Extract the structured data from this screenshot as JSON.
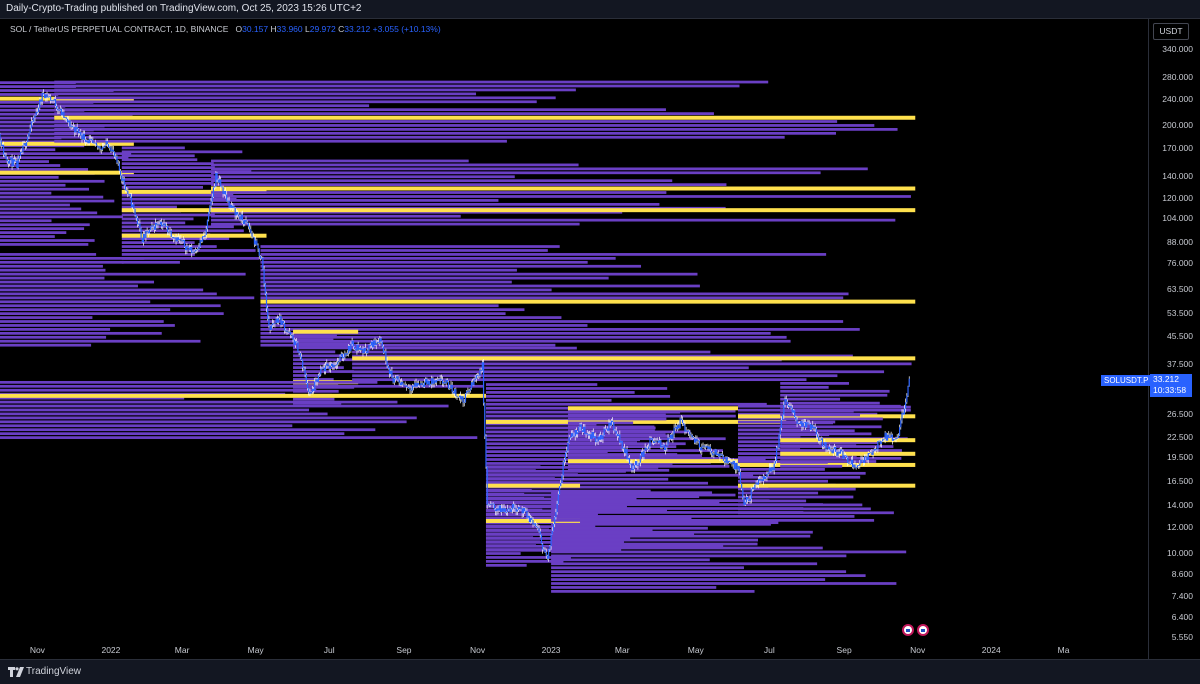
{
  "header": {
    "published": "Daily-Crypto-Trading published on TradingView.com, Oct 25, 2023 15:26 UTC+2"
  },
  "legend": {
    "symbol": "SOL / TetherUS PERPETUAL CONTRACT, 1D, BINANCE",
    "o_label": "O",
    "o": "30.157",
    "h_label": "H",
    "h": "33.960",
    "l_label": "L",
    "l": "29.972",
    "c_label": "C",
    "c": "33.212",
    "change": "+3.055 (+10.13%)"
  },
  "currency_button": "USDT",
  "last_price": {
    "symbol": "SOLUSDT.P",
    "price": "33.212",
    "countdown": "10:33:58"
  },
  "footer": {
    "brand": "TradingView"
  },
  "colors": {
    "profile": "#6a3fc4",
    "poc": "#ffe14d",
    "candle": "#2962ff",
    "wick": "#ffffff",
    "badge": "#2962ff"
  },
  "chart_data": {
    "type": "candlestick-volume-profile",
    "title": "",
    "y_scale": "log",
    "ylim": [
      5.55,
      380
    ],
    "x_range": [
      "2021-10-01",
      "2024-05-10"
    ],
    "price_ticks": [
      "340.000",
      "280.000",
      "240.000",
      "200.000",
      "170.000",
      "140.000",
      "120.000",
      "104.000",
      "88.000",
      "76.000",
      "63.500",
      "53.500",
      "45.500",
      "37.500",
      "26.500",
      "22.500",
      "19.500",
      "16.500",
      "14.000",
      "12.000",
      "10.000",
      "8.600",
      "7.400",
      "6.400",
      "5.550"
    ],
    "time_ticks": [
      {
        "label": "Nov",
        "date": "2021-11-01"
      },
      {
        "label": "2022",
        "date": "2022-01-01"
      },
      {
        "label": "Mar",
        "date": "2022-03-01"
      },
      {
        "label": "May",
        "date": "2022-05-01"
      },
      {
        "label": "Jul",
        "date": "2022-07-01"
      },
      {
        "label": "Sep",
        "date": "2022-09-01"
      },
      {
        "label": "Nov",
        "date": "2022-11-01"
      },
      {
        "label": "2023",
        "date": "2023-01-01"
      },
      {
        "label": "Mar",
        "date": "2023-03-01"
      },
      {
        "label": "May",
        "date": "2023-05-01"
      },
      {
        "label": "Jul",
        "date": "2023-07-01"
      },
      {
        "label": "Sep",
        "date": "2023-09-01"
      },
      {
        "label": "Nov",
        "date": "2023-11-01"
      },
      {
        "label": "2024",
        "date": "2024-01-01"
      },
      {
        "label": "Ma",
        "date": "2024-03-01"
      }
    ],
    "price_path": [
      [
        "2021-09-28",
        200
      ],
      [
        "2021-10-05",
        160
      ],
      [
        "2021-10-15",
        150
      ],
      [
        "2021-10-25",
        190
      ],
      [
        "2021-11-06",
        250
      ],
      [
        "2021-11-15",
        235
      ],
      [
        "2021-11-25",
        205
      ],
      [
        "2021-12-05",
        190
      ],
      [
        "2021-12-20",
        170
      ],
      [
        "2021-12-31",
        175
      ],
      [
        "2022-01-08",
        145
      ],
      [
        "2022-01-20",
        110
      ],
      [
        "2022-01-27",
        90
      ],
      [
        "2022-02-10",
        102
      ],
      [
        "2022-02-25",
        90
      ],
      [
        "2022-03-10",
        82
      ],
      [
        "2022-03-20",
        92
      ],
      [
        "2022-03-29",
        140
      ],
      [
        "2022-04-10",
        113
      ],
      [
        "2022-04-25",
        98
      ],
      [
        "2022-05-06",
        78
      ],
      [
        "2022-05-12",
        48
      ],
      [
        "2022-05-20",
        52
      ],
      [
        "2022-06-05",
        42
      ],
      [
        "2022-06-15",
        30
      ],
      [
        "2022-06-25",
        36
      ],
      [
        "2022-07-08",
        38
      ],
      [
        "2022-07-20",
        43
      ],
      [
        "2022-07-30",
        41
      ],
      [
        "2022-08-12",
        45
      ],
      [
        "2022-08-22",
        34
      ],
      [
        "2022-09-05",
        32
      ],
      [
        "2022-09-20",
        33
      ],
      [
        "2022-10-05",
        33
      ],
      [
        "2022-10-20",
        29
      ],
      [
        "2022-11-05",
        37
      ],
      [
        "2022-11-09",
        14
      ],
      [
        "2022-11-20",
        13.5
      ],
      [
        "2022-12-05",
        13.8
      ],
      [
        "2022-12-20",
        12
      ],
      [
        "2022-12-29",
        9.5
      ],
      [
        "2023-01-08",
        16
      ],
      [
        "2023-01-15",
        22
      ],
      [
        "2023-01-25",
        24
      ],
      [
        "2023-02-10",
        22
      ],
      [
        "2023-02-20",
        25
      ],
      [
        "2023-03-10",
        18
      ],
      [
        "2023-03-25",
        22
      ],
      [
        "2023-04-05",
        21
      ],
      [
        "2023-04-18",
        25
      ],
      [
        "2023-05-05",
        21
      ],
      [
        "2023-05-20",
        20
      ],
      [
        "2023-06-05",
        18
      ],
      [
        "2023-06-10",
        14
      ],
      [
        "2023-06-20",
        16
      ],
      [
        "2023-07-05",
        18.5
      ],
      [
        "2023-07-14",
        29
      ],
      [
        "2023-07-25",
        25
      ],
      [
        "2023-08-05",
        24
      ],
      [
        "2023-08-17",
        21
      ],
      [
        "2023-08-30",
        20
      ],
      [
        "2023-09-10",
        18.5
      ],
      [
        "2023-09-20",
        19.5
      ],
      [
        "2023-10-05",
        22.5
      ],
      [
        "2023-10-15",
        22
      ],
      [
        "2023-10-20",
        27
      ],
      [
        "2023-10-25",
        33.2
      ]
    ],
    "volume_profiles": [
      {
        "start": "2021-09-28",
        "end": "2022-01-20",
        "low": 85,
        "high": 265,
        "poc": [
          240,
          175,
          143
        ]
      },
      {
        "start": "2022-01-10",
        "end": "2022-05-10",
        "low": 75,
        "high": 170,
        "poc": [
          125,
          110,
          92
        ]
      },
      {
        "start": "2021-11-15",
        "end": "2023-10-30",
        "low": 175,
        "high": 265,
        "poc": [
          210
        ]
      },
      {
        "start": "2022-03-25",
        "end": "2023-10-30",
        "low": 98,
        "high": 155,
        "poc": [
          128,
          110
        ]
      },
      {
        "start": "2022-05-05",
        "end": "2023-10-30",
        "low": 42,
        "high": 85,
        "poc": [
          58
        ]
      },
      {
        "start": "2021-09-28",
        "end": "2022-05-10",
        "low": 42,
        "high": 80,
        "poc": []
      },
      {
        "start": "2022-06-01",
        "end": "2022-07-25",
        "low": 28,
        "high": 45,
        "poc": [
          47,
          33
        ]
      },
      {
        "start": "2022-07-20",
        "end": "2023-10-30",
        "low": 33,
        "high": 42,
        "poc": [
          39
        ]
      },
      {
        "start": "2021-09-28",
        "end": "2022-11-08",
        "low": 22,
        "high": 33,
        "poc": [
          30
        ]
      },
      {
        "start": "2022-11-08",
        "end": "2023-07-15",
        "low": 10,
        "high": 32,
        "poc": [
          25
        ]
      },
      {
        "start": "2022-11-08",
        "end": "2023-01-25",
        "low": 9,
        "high": 18,
        "poc": [
          16,
          12.5
        ]
      },
      {
        "start": "2023-01-01",
        "end": "2023-10-30",
        "low": 7.5,
        "high": 15,
        "poc": []
      },
      {
        "start": "2023-01-15",
        "end": "2023-06-05",
        "low": 17.5,
        "high": 27,
        "poc": [
          27.5,
          19
        ]
      },
      {
        "start": "2023-06-05",
        "end": "2023-10-30",
        "low": 13,
        "high": 28,
        "poc": [
          26,
          18.5,
          16
        ]
      },
      {
        "start": "2023-07-10",
        "end": "2023-10-30",
        "low": 18,
        "high": 33,
        "poc": [
          22,
          20
        ]
      }
    ],
    "events": [
      {
        "date": "2023-10-24"
      },
      {
        "date": "2023-11-05"
      }
    ]
  }
}
